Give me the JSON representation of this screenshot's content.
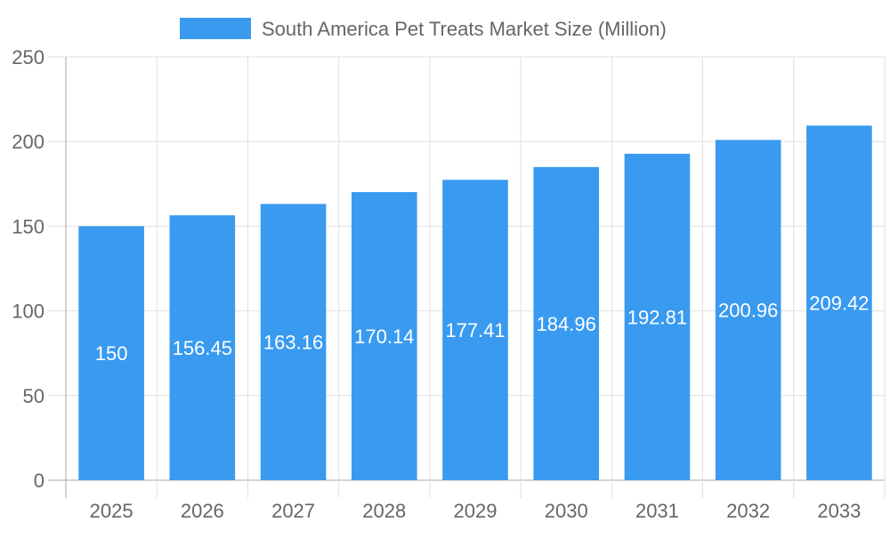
{
  "chart_data": {
    "type": "bar",
    "categories": [
      "2025",
      "2026",
      "2027",
      "2028",
      "2029",
      "2030",
      "2031",
      "2032",
      "2033"
    ],
    "series": [
      {
        "name": "South America Pet Treats Market Size (Million)",
        "values": [
          150,
          156.45,
          163.16,
          170.14,
          177.41,
          184.96,
          192.81,
          200.96,
          209.42
        ]
      }
    ],
    "data_labels": [
      "150",
      "156.45",
      "163.16",
      "170.14",
      "177.41",
      "184.96",
      "192.81",
      "200.96",
      "209.42"
    ],
    "ylim": [
      0,
      250
    ],
    "yticks": [
      "0",
      "50",
      "100",
      "150",
      "200",
      "250"
    ],
    "grid": true,
    "legend": "top-center",
    "colors": {
      "bar": "#399af0",
      "grid": "#e0e0e0",
      "axis": "#aaaaaa",
      "text": "#666666",
      "label": "#ffffff"
    }
  }
}
